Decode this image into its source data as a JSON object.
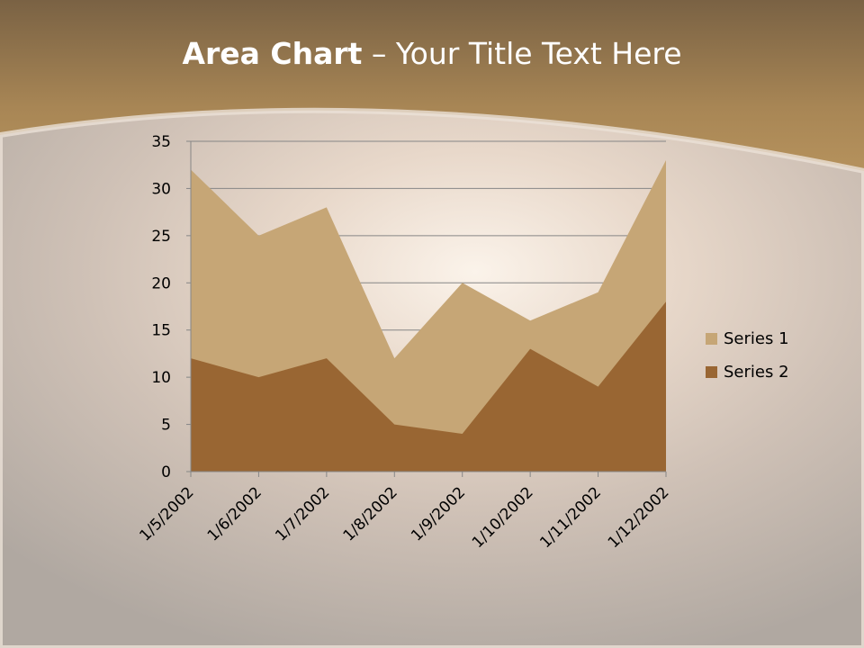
{
  "title": {
    "bold": "Area Chart",
    "rest": " – Your Title Text Here"
  },
  "colors": {
    "series1": "#c6a676",
    "series2": "#996633",
    "header": "#a88655"
  },
  "chart_data": {
    "type": "area",
    "stacked": true,
    "categories": [
      "1/5/2002",
      "1/6/2002",
      "1/7/2002",
      "1/8/2002",
      "1/9/2002",
      "1/10/2002",
      "1/11/2002",
      "1/12/2002"
    ],
    "series": [
      {
        "name": "Series 1",
        "values": [
          20,
          15,
          16,
          7,
          16,
          3,
          10,
          15
        ]
      },
      {
        "name": "Series 2",
        "values": [
          12,
          10,
          12,
          5,
          4,
          13,
          9,
          18
        ]
      }
    ],
    "yticks": [
      0,
      5,
      10,
      15,
      20,
      25,
      30,
      35
    ],
    "ylim": [
      0,
      35
    ],
    "grid": true,
    "legend": "right"
  }
}
